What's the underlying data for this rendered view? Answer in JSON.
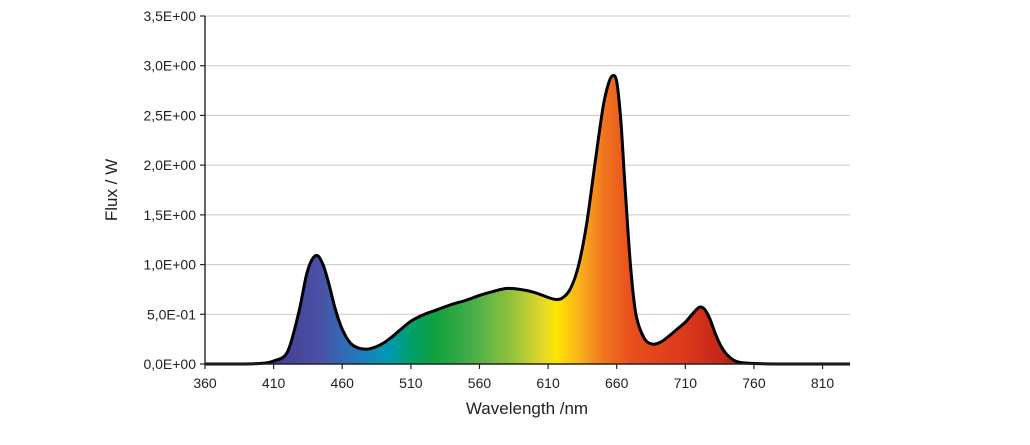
{
  "chart_data": {
    "type": "area",
    "title": "",
    "xlabel": "Wavelength /nm",
    "ylabel": "Flux / W",
    "xlim": [
      360,
      830
    ],
    "ylim": [
      0,
      3.5
    ],
    "grid": "horizontal",
    "x_ticks": [
      360,
      410,
      460,
      510,
      560,
      610,
      660,
      710,
      760,
      810
    ],
    "x_tick_labels": [
      "360",
      "410",
      "460",
      "510",
      "560",
      "610",
      "660",
      "710",
      "760",
      "810"
    ],
    "y_ticks": [
      0,
      0.5,
      1.0,
      1.5,
      2.0,
      2.5,
      3.0,
      3.5
    ],
    "y_tick_labels": [
      "0,0E+00",
      "5,0E-01",
      "1,0E+00",
      "1,5E+00",
      "2,0E+00",
      "2,5E+00",
      "3,0E+00",
      "3,5E+00"
    ],
    "fill": "visible-spectrum-gradient",
    "series": [
      {
        "x": [
          360,
          380,
          400,
          410,
          420,
          428,
          434,
          438,
          442,
          446,
          450,
          455,
          460,
          466,
          472,
          478,
          484,
          490,
          496,
          502,
          510,
          520,
          530,
          540,
          550,
          560,
          570,
          580,
          590,
          600,
          610,
          615,
          620,
          626,
          632,
          638,
          644,
          650,
          654,
          657,
          660,
          663,
          666,
          670,
          674,
          680,
          686,
          692,
          698,
          704,
          710,
          715,
          720,
          724,
          728,
          732,
          736,
          740,
          745,
          750,
          760,
          780,
          800,
          830
        ],
        "y": [
          0.0,
          0.0,
          0.005,
          0.03,
          0.12,
          0.5,
          0.9,
          1.05,
          1.09,
          1.0,
          0.82,
          0.55,
          0.35,
          0.21,
          0.16,
          0.15,
          0.17,
          0.21,
          0.27,
          0.34,
          0.43,
          0.5,
          0.55,
          0.6,
          0.64,
          0.69,
          0.73,
          0.76,
          0.75,
          0.72,
          0.67,
          0.65,
          0.66,
          0.75,
          0.98,
          1.4,
          2.0,
          2.58,
          2.82,
          2.9,
          2.84,
          2.45,
          1.8,
          1.0,
          0.5,
          0.26,
          0.2,
          0.22,
          0.28,
          0.35,
          0.42,
          0.5,
          0.57,
          0.55,
          0.45,
          0.3,
          0.18,
          0.1,
          0.04,
          0.015,
          0.005,
          0.0,
          0.0,
          0.0
        ]
      }
    ]
  }
}
